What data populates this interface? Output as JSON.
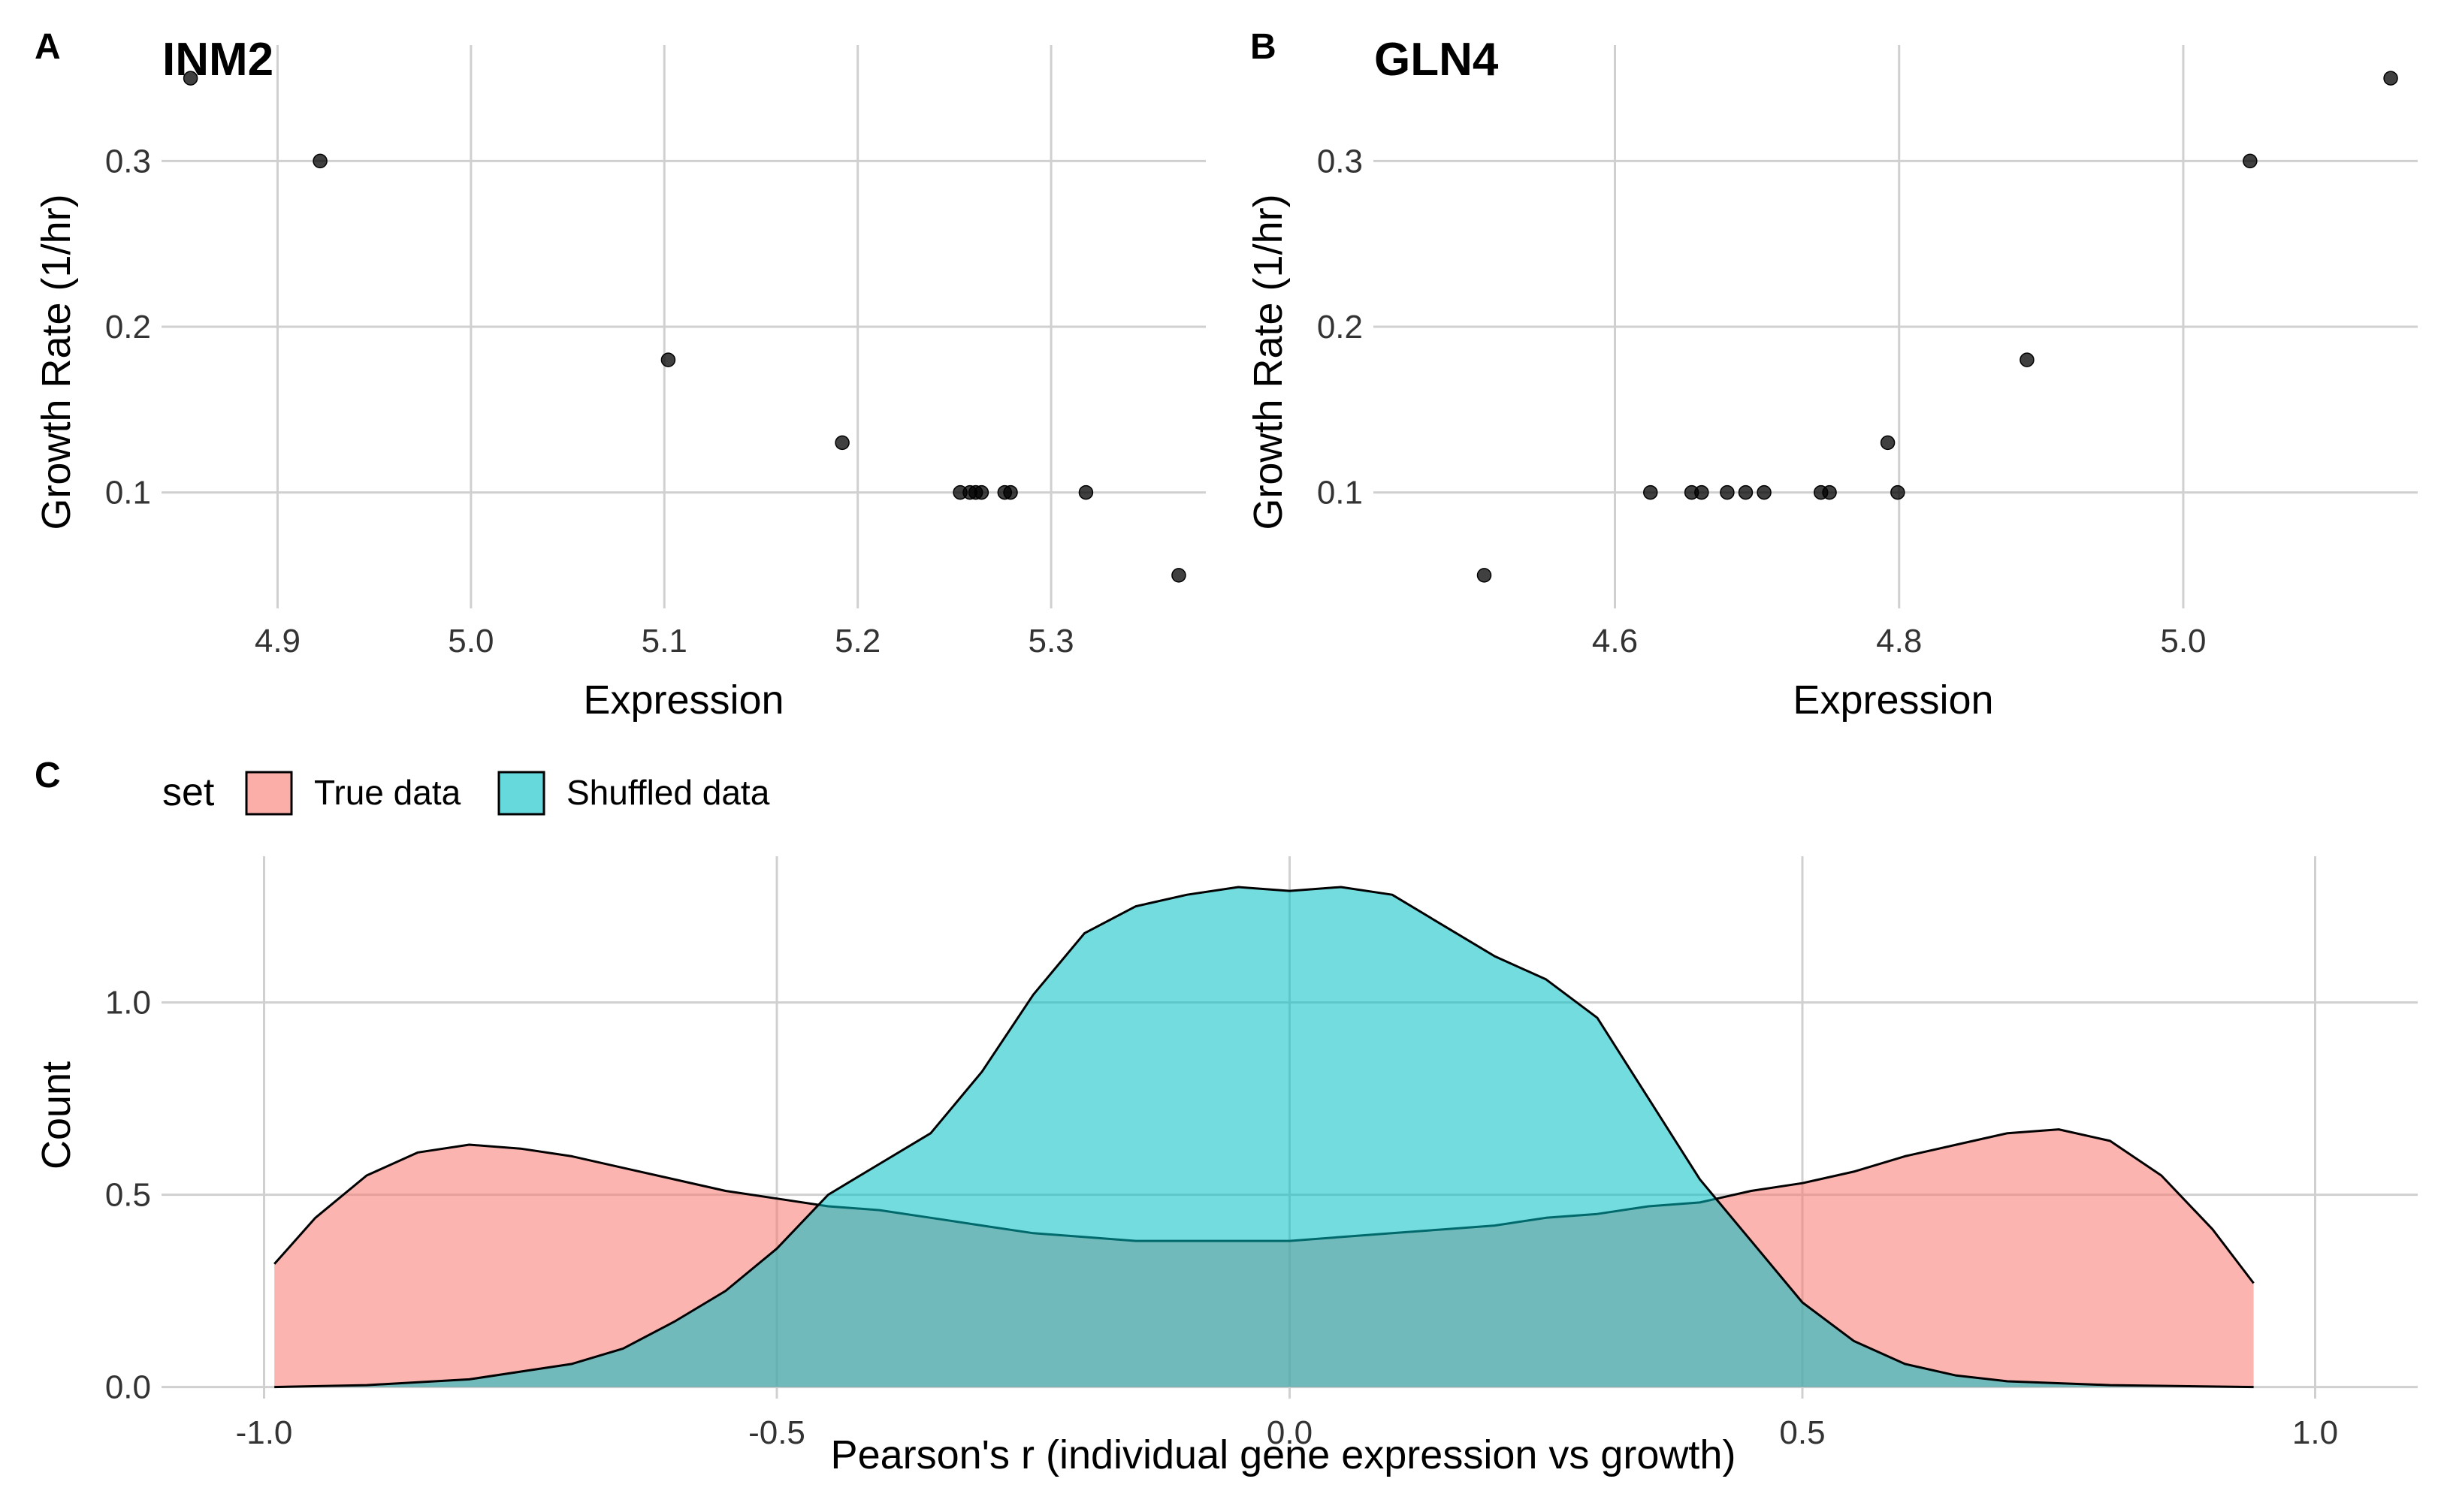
{
  "chart_data": [
    {
      "panel": "A",
      "type": "scatter",
      "title": "INM2",
      "xlabel": "Expression",
      "ylabel": "Growth Rate (1/hr)",
      "xlim": [
        4.84,
        5.38
      ],
      "ylim": [
        0.03,
        0.37
      ],
      "xticks": [
        4.9,
        5.0,
        5.1,
        5.2,
        5.3
      ],
      "xtick_labels": [
        "4.9",
        "5.0",
        "5.1",
        "5.2",
        "5.3"
      ],
      "yticks": [
        0.1,
        0.2,
        0.3
      ],
      "ytick_labels": [
        "0.1",
        "0.2",
        "0.3"
      ],
      "grid": true,
      "points": [
        {
          "x": 4.855,
          "y": 0.35
        },
        {
          "x": 4.922,
          "y": 0.3
        },
        {
          "x": 5.102,
          "y": 0.18
        },
        {
          "x": 5.192,
          "y": 0.13
        },
        {
          "x": 5.253,
          "y": 0.1
        },
        {
          "x": 5.258,
          "y": 0.1
        },
        {
          "x": 5.261,
          "y": 0.1
        },
        {
          "x": 5.264,
          "y": 0.1
        },
        {
          "x": 5.276,
          "y": 0.1
        },
        {
          "x": 5.279,
          "y": 0.1
        },
        {
          "x": 5.318,
          "y": 0.1
        },
        {
          "x": 5.366,
          "y": 0.05
        }
      ]
    },
    {
      "panel": "B",
      "type": "scatter",
      "title": "GLN4",
      "xlabel": "Expression",
      "ylabel": "Growth Rate (1/hr)",
      "xlim": [
        4.43,
        5.165
      ],
      "ylim": [
        0.03,
        0.37
      ],
      "xticks": [
        4.6,
        4.8,
        5.0
      ],
      "xtick_labels": [
        "4.6",
        "4.8",
        "5.0"
      ],
      "yticks": [
        0.1,
        0.2,
        0.3
      ],
      "ytick_labels": [
        "0.1",
        "0.2",
        "0.3"
      ],
      "grid": true,
      "points": [
        {
          "x": 4.508,
          "y": 0.05
        },
        {
          "x": 4.625,
          "y": 0.1
        },
        {
          "x": 4.654,
          "y": 0.1
        },
        {
          "x": 4.661,
          "y": 0.1
        },
        {
          "x": 4.679,
          "y": 0.1
        },
        {
          "x": 4.692,
          "y": 0.1
        },
        {
          "x": 4.705,
          "y": 0.1
        },
        {
          "x": 4.745,
          "y": 0.1
        },
        {
          "x": 4.751,
          "y": 0.1
        },
        {
          "x": 4.792,
          "y": 0.13
        },
        {
          "x": 4.799,
          "y": 0.1
        },
        {
          "x": 4.89,
          "y": 0.18
        },
        {
          "x": 5.047,
          "y": 0.3
        },
        {
          "x": 5.146,
          "y": 0.35
        }
      ]
    },
    {
      "panel": "C",
      "type": "area",
      "xlabel": "Pearson's r (individual gene expression vs growth)",
      "ylabel": "Count",
      "xlim": [
        -1.1,
        1.1
      ],
      "ylim": [
        -0.03,
        1.38
      ],
      "xticks": [
        -1.0,
        -0.5,
        0.0,
        0.5,
        1.0
      ],
      "xtick_labels": [
        "-1.0",
        "-0.5",
        "0.0",
        "0.5",
        "1.0"
      ],
      "yticks": [
        0.0,
        0.5,
        1.0
      ],
      "ytick_labels": [
        "0.0",
        "0.5",
        "1.0"
      ],
      "grid": true,
      "legend": {
        "title": "set",
        "position": "top-left",
        "entries": [
          "True data",
          "Shuffled data"
        ]
      },
      "series": [
        {
          "name": "True data",
          "color": "#F8766D",
          "x": [
            -0.99,
            -0.95,
            -0.9,
            -0.85,
            -0.8,
            -0.75,
            -0.7,
            -0.65,
            -0.6,
            -0.55,
            -0.5,
            -0.45,
            -0.4,
            -0.35,
            -0.3,
            -0.25,
            -0.2,
            -0.15,
            -0.1,
            -0.05,
            0.0,
            0.05,
            0.1,
            0.15,
            0.2,
            0.25,
            0.3,
            0.35,
            0.4,
            0.45,
            0.5,
            0.55,
            0.6,
            0.65,
            0.7,
            0.75,
            0.8,
            0.85,
            0.9,
            0.94
          ],
          "y": [
            0.32,
            0.44,
            0.55,
            0.61,
            0.63,
            0.62,
            0.6,
            0.57,
            0.54,
            0.51,
            0.49,
            0.47,
            0.46,
            0.44,
            0.42,
            0.4,
            0.39,
            0.38,
            0.38,
            0.38,
            0.38,
            0.39,
            0.4,
            0.41,
            0.42,
            0.44,
            0.45,
            0.47,
            0.48,
            0.51,
            0.53,
            0.56,
            0.6,
            0.63,
            0.66,
            0.67,
            0.64,
            0.55,
            0.41,
            0.27
          ]
        },
        {
          "name": "Shuffled data",
          "color": "#00BFC4",
          "x": [
            -0.99,
            -0.9,
            -0.8,
            -0.7,
            -0.65,
            -0.6,
            -0.55,
            -0.5,
            -0.45,
            -0.4,
            -0.35,
            -0.3,
            -0.25,
            -0.2,
            -0.15,
            -0.1,
            -0.05,
            0.0,
            0.05,
            0.1,
            0.15,
            0.2,
            0.25,
            0.3,
            0.35,
            0.4,
            0.45,
            0.5,
            0.55,
            0.6,
            0.65,
            0.7,
            0.8,
            0.94
          ],
          "y": [
            0.0,
            0.005,
            0.02,
            0.06,
            0.1,
            0.17,
            0.25,
            0.36,
            0.5,
            0.58,
            0.66,
            0.82,
            1.02,
            1.18,
            1.25,
            1.28,
            1.3,
            1.29,
            1.3,
            1.28,
            1.2,
            1.12,
            1.06,
            0.96,
            0.75,
            0.54,
            0.38,
            0.22,
            0.12,
            0.06,
            0.03,
            0.015,
            0.005,
            0.0
          ]
        }
      ]
    }
  ]
}
